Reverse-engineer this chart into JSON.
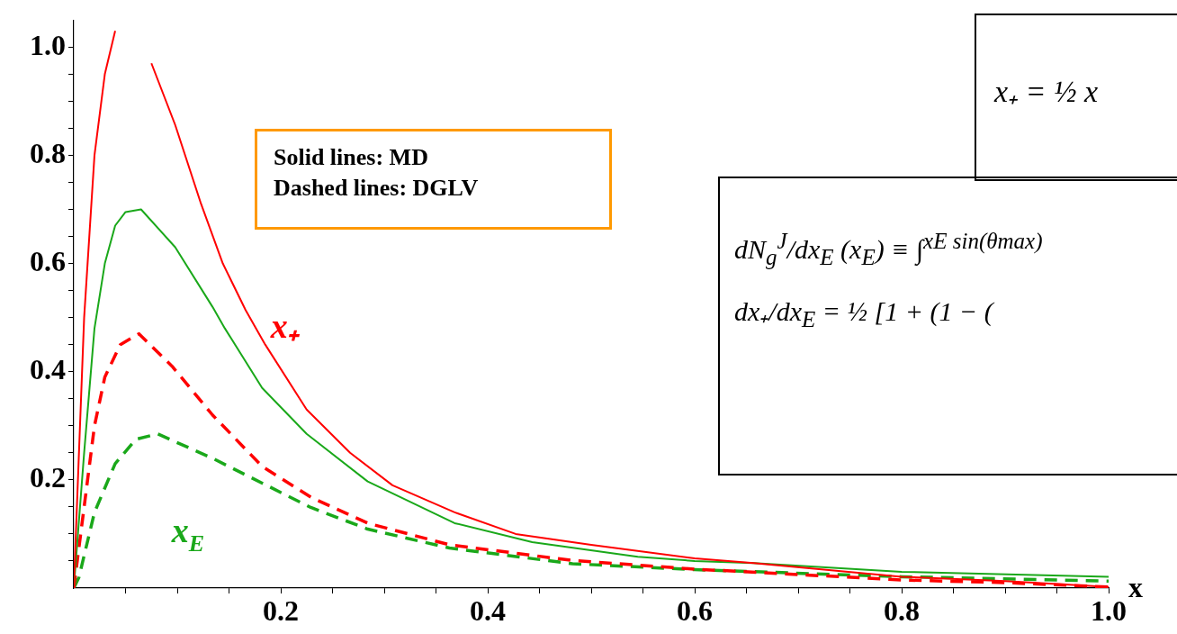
{
  "chart_data": {
    "type": "line",
    "xlabel": "x",
    "xlim": [
      0,
      1
    ],
    "ylim": [
      0,
      1.05
    ],
    "xticks": [
      {
        "value": 0.05,
        "label": null
      },
      {
        "value": 0.1,
        "label": null
      },
      {
        "value": 0.15,
        "label": null
      },
      0.2,
      {
        "value": 0.25,
        "label": null
      },
      {
        "value": 0.3,
        "label": null
      },
      {
        "value": 0.35,
        "label": null
      },
      0.4,
      {
        "value": 0.45,
        "label": null
      },
      {
        "value": 0.5,
        "label": null
      },
      {
        "value": 0.55,
        "label": null
      },
      0.6,
      {
        "value": 0.65,
        "label": null
      },
      {
        "value": 0.7,
        "label": null
      },
      {
        "value": 0.75,
        "label": null
      },
      0.8,
      {
        "value": 0.85,
        "label": null
      },
      {
        "value": 0.9,
        "label": null
      },
      {
        "value": 0.95,
        "label": null
      },
      {
        "value": 1,
        "label": "1.0"
      }
    ],
    "yticks": [
      {
        "value": 0.05,
        "label": null
      },
      {
        "value": 0.1,
        "label": null
      },
      {
        "value": 0.15,
        "label": null
      },
      0.2,
      {
        "value": 0.25,
        "label": null
      },
      {
        "value": 0.3,
        "label": null
      },
      {
        "value": 0.35,
        "label": null
      },
      0.4,
      {
        "value": 0.45,
        "label": null
      },
      {
        "value": 0.5,
        "label": null
      },
      {
        "value": 0.55,
        "label": null
      },
      0.6,
      {
        "value": 0.65,
        "label": null
      },
      {
        "value": 0.7,
        "label": null
      },
      {
        "value": 0.75,
        "label": null
      },
      0.8,
      {
        "value": 0.85,
        "label": null
      },
      {
        "value": 0.9,
        "label": null
      },
      {
        "value": 0.95,
        "label": null
      },
      {
        "value": 1,
        "label": "1.0"
      }
    ],
    "grid": false,
    "legend": false,
    "marker": "none",
    "series": [
      {
        "name": "x₊",
        "color": "#ff0000",
        "line_style": "solid",
        "x": [
          0,
          0.01,
          0.02,
          0.03,
          0.04,
          0.05,
          0.06,
          0.075,
          0.098,
          0.123,
          0.144,
          0.166,
          0.185,
          0.225,
          0.267,
          0.308,
          0.368,
          0.427,
          0.5,
          0.6,
          0.657,
          0.8,
          0.9,
          1.0
        ],
        "values": [
          0,
          0.5,
          0.8,
          0.95,
          1.03,
          null,
          null,
          0.97,
          0.856,
          0.71,
          0.6,
          0.514,
          0.45,
          0.33,
          0.25,
          0.19,
          0.14,
          0.1,
          0.08,
          0.055,
          0.046,
          0.021,
          0.013,
          0.002
        ]
      },
      {
        "name": "x$_{E}$",
        "color": "#1aa81a",
        "line_style": "solid",
        "x": [
          0,
          0.01,
          0.02,
          0.03,
          0.04,
          0.05,
          0.065,
          0.098,
          0.134,
          0.146,
          0.182,
          0.225,
          0.284,
          0.368,
          0.443,
          0.545,
          0.6,
          0.657,
          0.8,
          1.0
        ],
        "values": [
          0,
          0.25,
          0.48,
          0.6,
          0.67,
          0.695,
          0.7,
          0.63,
          0.52,
          0.48,
          0.37,
          0.285,
          0.197,
          0.12,
          0.085,
          0.058,
          0.05,
          0.046,
          0.03,
          0.021
        ]
      },
      {
        "color": "#ff0000",
        "line_style": "dashed",
        "x": [
          0,
          0.01,
          0.02,
          0.03,
          0.045,
          0.063,
          0.095,
          0.134,
          0.182,
          0.229,
          0.284,
          0.363,
          0.482,
          0.6,
          0.8,
          0.9,
          1.0
        ],
        "values": [
          0,
          0.15,
          0.3,
          0.39,
          0.45,
          0.47,
          0.41,
          0.32,
          0.225,
          0.168,
          0.12,
          0.08,
          0.051,
          0.035,
          0.015,
          0.01,
          0.002
        ]
      },
      {
        "color": "#1aa81a",
        "line_style": "dashed",
        "x": [
          0,
          0.005,
          0.02,
          0.04,
          0.06,
          0.081,
          0.134,
          0.182,
          0.229,
          0.284,
          0.363,
          0.482,
          0.6,
          0.8,
          1.0
        ],
        "values": [
          0,
          0.02,
          0.14,
          0.23,
          0.275,
          0.285,
          0.24,
          0.194,
          0.149,
          0.109,
          0.074,
          0.045,
          0.034,
          0.021,
          0.013
        ]
      }
    ],
    "annotations": [
      "Solid lines: MD",
      "Dashed lines: DGLV",
      "x₊ = ½ x",
      "dN$_{g}$$^{J}$/dx$_{E}$ (x$_{E}$) ≡ ∫$^{xE sin(θmax)}$",
      "dx₊/dx$_{E}$ = ½ [1 + (1 − ("
    ]
  }
}
